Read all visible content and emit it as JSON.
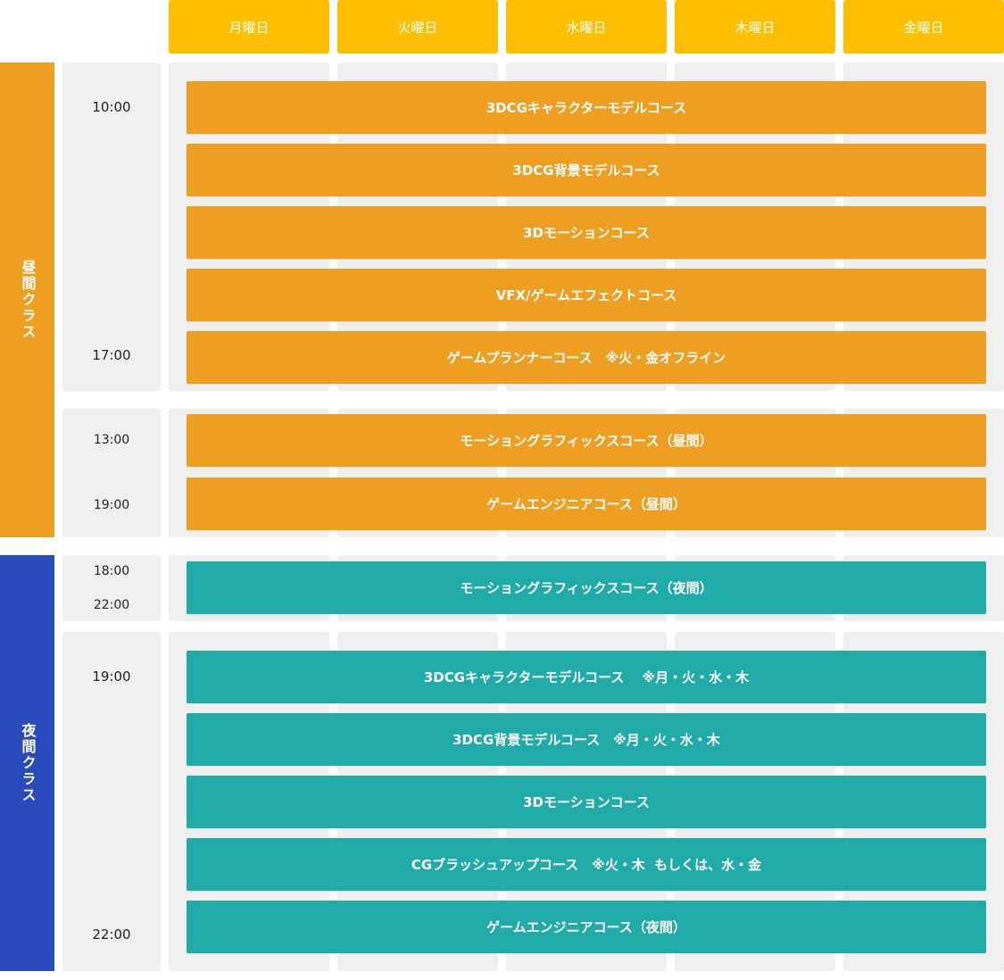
{
  "days": [
    "月曜日",
    "火曜日",
    "水曜日",
    "木曜日",
    "金曜日"
  ],
  "sections": {
    "day_class": "昼間クラス",
    "night_class": "夜間クラス"
  },
  "times": {
    "g1_start": "10:00",
    "g1_end": "17:00",
    "g2_start": "13:00",
    "g2_end": "19:00",
    "g3_start": "18:00",
    "g3_end": "22:00",
    "g4_start": "19:00",
    "g4_end": "22:00"
  },
  "courses": {
    "day_a": [
      "3DCGキャラクターモデルコース",
      "3DCG背景モデルコース",
      "3Dモーションコース",
      "VFX/ゲームエフェクトコース",
      "ゲームプランナーコース　※火・金オフライン"
    ],
    "day_b": [
      "モーショングラフィックスコース（昼間）",
      "ゲームエンジニアコース（昼間）"
    ],
    "night_a": [
      "モーショングラフィックスコース（夜間）"
    ],
    "night_b": [
      "3DCGキャラクターモデルコース　 ※月・火・水・木",
      "3DCG背景モデルコース　※月・火・水・木",
      "3Dモーションコース",
      "CGブラッシュアップコース　※火・木  もしくは、水・金",
      "ゲームエンジニアコース（夜間）"
    ]
  },
  "colors": {
    "header": "#fdbf00",
    "day": "#ee9e20",
    "night_side": "#2a4bbb",
    "night_bar": "#20aba9",
    "cell": "#efefef"
  }
}
